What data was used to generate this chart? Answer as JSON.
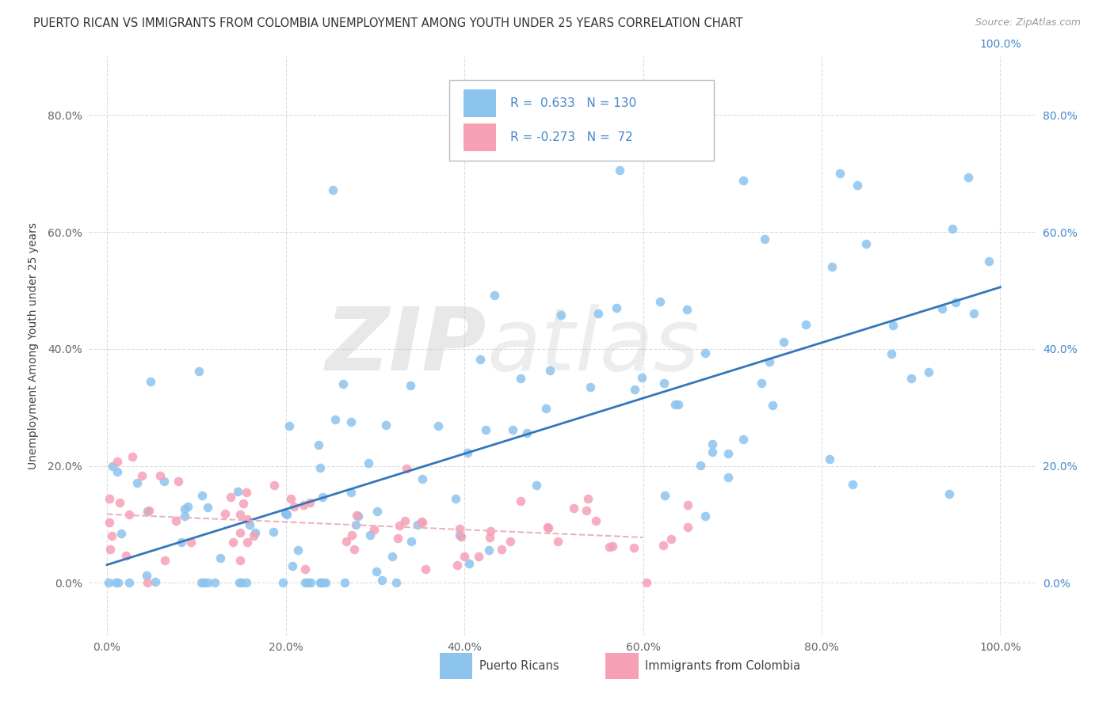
{
  "title": "PUERTO RICAN VS IMMIGRANTS FROM COLOMBIA UNEMPLOYMENT AMONG YOUTH UNDER 25 YEARS CORRELATION CHART",
  "source": "Source: ZipAtlas.com",
  "ylabel": "Unemployment Among Youth under 25 years",
  "watermark_zip": "ZIP",
  "watermark_atlas": "atlas",
  "legend_label1": "Puerto Ricans",
  "legend_label2": "Immigrants from Colombia",
  "R1": 0.633,
  "N1": 130,
  "R2": -0.273,
  "N2": 72,
  "color_blue": "#8CC4EE",
  "color_pink": "#F5A0B5",
  "color_blue_line": "#3377BB",
  "color_pink_line": "#DD7090",
  "color_pink_line_dash": "#EEB0C0",
  "xlim": [
    -0.02,
    1.04
  ],
  "ylim": [
    -0.09,
    0.9
  ],
  "xticks": [
    0.0,
    0.2,
    0.4,
    0.6,
    0.8,
    1.0
  ],
  "yticks": [
    0.0,
    0.2,
    0.4,
    0.6,
    0.8
  ],
  "grid_color": "#DDDDDD",
  "tick_color_left": "#666666",
  "tick_color_right": "#4488CC",
  "title_fontsize": 10.5,
  "source_fontsize": 9,
  "axis_fontsize": 10,
  "watermark_fontsize_zip": 80,
  "watermark_fontsize_atlas": 80
}
